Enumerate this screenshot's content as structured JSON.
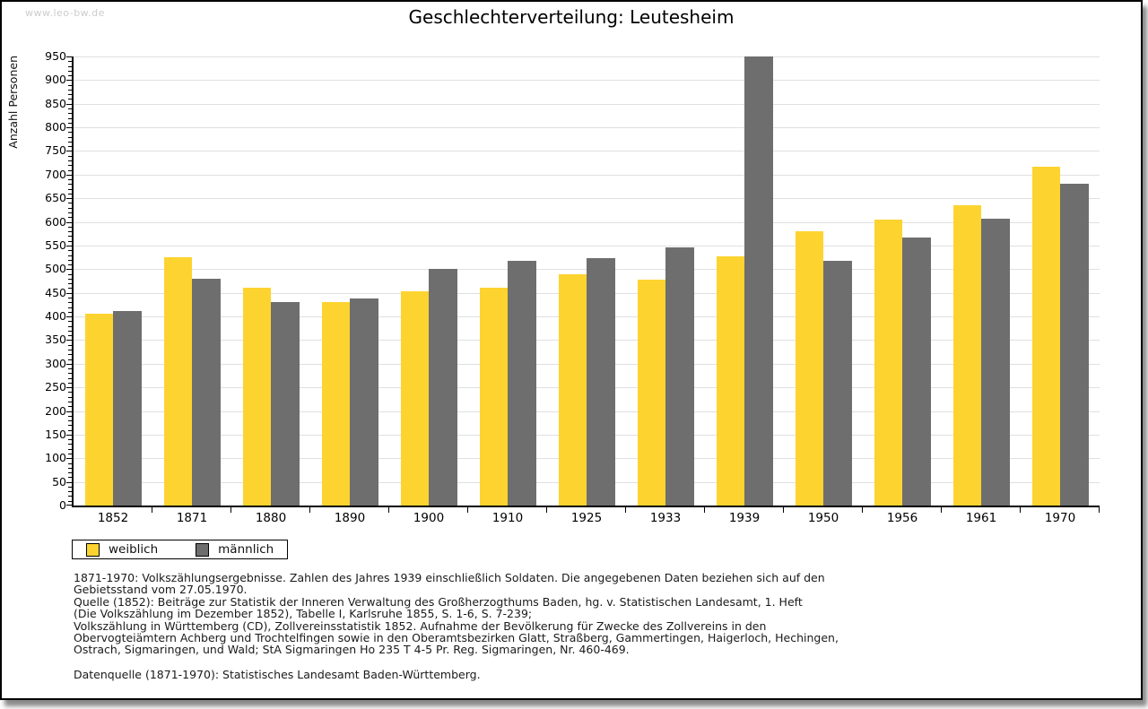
{
  "watermark": "www.leo-bw.de",
  "title": "Geschlechterverteilung: Leutesheim",
  "chart_data": {
    "type": "bar",
    "title": "Geschlechterverteilung: Leutesheim",
    "xlabel": "",
    "ylabel": "Anzahl Personen",
    "ylim": [
      0,
      950
    ],
    "ytick_step": 50,
    "ytick_minor_step": 10,
    "grid": true,
    "legend_position": "bottom-left",
    "categories": [
      "1852",
      "1871",
      "1880",
      "1890",
      "1900",
      "1910",
      "1925",
      "1933",
      "1939",
      "1950",
      "1956",
      "1961",
      "1970"
    ],
    "series": [
      {
        "name": "weiblich",
        "color": "#fdd32f",
        "values": [
          406,
          526,
          460,
          431,
          453,
          460,
          489,
          477,
          527,
          580,
          604,
          635,
          717
        ]
      },
      {
        "name": "männlich",
        "color": "#6e6e6e",
        "values": [
          412,
          479,
          431,
          438,
          500,
          518,
          523,
          546,
          950,
          517,
          567,
          607,
          681
        ]
      }
    ]
  },
  "footnotes": [
    "1871-1970: Volkszählungsergebnisse. Zahlen des Jahres 1939 einschließlich Soldaten. Die angegebenen Daten beziehen sich auf den",
    "Gebietsstand vom 27.05.1970.",
    "Quelle (1852): Beiträge zur Statistik der Inneren Verwaltung des Großherzogthums Baden, hg. v. Statistischen Landesamt, 1. Heft",
    "(Die Volkszählung im Dezember 1852), Tabelle I, Karlsruhe 1855, S. 1-6, S. 7-239;",
    "Volkszählung in Württemberg (CD), Zollvereinsstatistik 1852. Aufnahme der Bevölkerung für Zwecke des Zollvereins in den",
    "Obervogteiämtern Achberg und Trochtelfingen sowie in den Oberamtsbezirken Glatt, Straßberg, Gammertingen, Haigerloch, Hechingen,",
    "Ostrach, Sigmaringen, und Wald; StA Sigmaringen Ho 235 T 4-5 Pr. Reg. Sigmaringen, Nr. 460-469."
  ],
  "datasource": "Datenquelle (1871-1970): Statistisches Landesamt Baden-Württemberg.",
  "colors": {
    "weiblich": "#fdd32f",
    "männlich": "#6e6e6e",
    "gridline": "#e0e0e0",
    "axis": "#000000",
    "watermark": "#cccccc"
  }
}
